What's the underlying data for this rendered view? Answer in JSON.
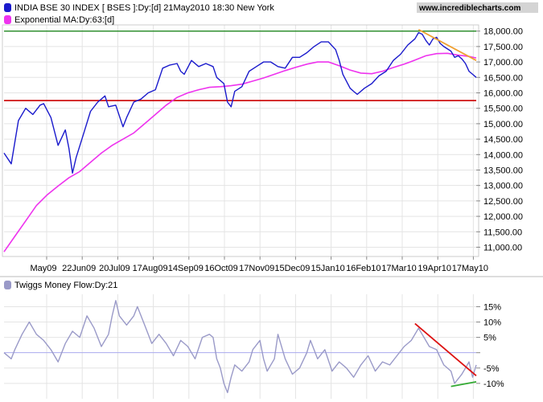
{
  "header": {
    "title": "INDIA BSE 30 INDEX [ BSES ]:Dy:[d]  21May2010 18:30 New York",
    "website": "www.incrediblecharts.com",
    "legend_ma": "Exponential MA:Dy:63:[d]",
    "legend_tmf": "Twiggs Money Flow:Dy:21"
  },
  "colors": {
    "price": "#1a1acc",
    "ma": "#ee33ee",
    "tmf": "#9a9ac8",
    "support": "#cc0000",
    "resistance": "#228822",
    "trend_orange": "#f0a030",
    "trend_red": "#dd1111",
    "trend_green": "#33aa33",
    "grid": "#e4e4e4",
    "zero_line": "#aaaaee"
  },
  "chart_data": [
    {
      "type": "line",
      "title": "INDIA BSE 30 INDEX [ BSES ]:Dy:[d]  21May2010 18:30 New York",
      "x_tick_labels": [
        "May09",
        "22Jun09",
        "20Jul09",
        "17Aug09",
        "14Sep09",
        "16Oct09",
        "17Nov09",
        "15Dec09",
        "15Jan10",
        "16Feb10",
        "17Mar10",
        "19Apr10",
        "17May10"
      ],
      "y_ticks": [
        11000,
        11500,
        12000,
        12500,
        13000,
        13500,
        14000,
        14500,
        15000,
        15500,
        16000,
        16500,
        17000,
        17500,
        18000
      ],
      "y_tick_labels": [
        "11,000.00",
        "11,500.00",
        "12,000.00",
        "12,500.00",
        "13,000.00",
        "13,500.00",
        "14,000.00",
        "14,500.00",
        "15,000.00",
        "15,500.00",
        "16,000.00",
        "16,500.00",
        "17,000.00",
        "17,500.00",
        "18,000.00"
      ],
      "ylim": [
        10700,
        18200
      ],
      "series": [
        {
          "name": "INDIA BSE 30 INDEX [ BSES ]:Dy:[d]",
          "points": [
            [
              0,
              14050
            ],
            [
              2,
              13700
            ],
            [
              4,
              15100
            ],
            [
              6,
              15500
            ],
            [
              8,
              15300
            ],
            [
              10,
              15600
            ],
            [
              11,
              15650
            ],
            [
              13,
              15200
            ],
            [
              15,
              14300
            ],
            [
              17,
              14800
            ],
            [
              18,
              14200
            ],
            [
              19,
              13400
            ],
            [
              20,
              13900
            ],
            [
              22,
              14650
            ],
            [
              24,
              15400
            ],
            [
              26,
              15700
            ],
            [
              28,
              15900
            ],
            [
              29,
              15550
            ],
            [
              31,
              15600
            ],
            [
              33,
              14900
            ],
            [
              34,
              15200
            ],
            [
              36,
              15700
            ],
            [
              38,
              15800
            ],
            [
              40,
              16000
            ],
            [
              42,
              16100
            ],
            [
              44,
              16800
            ],
            [
              46,
              16900
            ],
            [
              48,
              16950
            ],
            [
              49,
              16700
            ],
            [
              50,
              16600
            ],
            [
              52,
              17050
            ],
            [
              54,
              16850
            ],
            [
              56,
              16950
            ],
            [
              58,
              16850
            ],
            [
              59,
              16500
            ],
            [
              61,
              16300
            ],
            [
              62,
              15700
            ],
            [
              63,
              15550
            ],
            [
              64,
              16050
            ],
            [
              66,
              16200
            ],
            [
              68,
              16700
            ],
            [
              70,
              16850
            ],
            [
              72,
              17000
            ],
            [
              74,
              17000
            ],
            [
              76,
              16850
            ],
            [
              78,
              16800
            ],
            [
              80,
              17150
            ],
            [
              82,
              17150
            ],
            [
              84,
              17300
            ],
            [
              86,
              17500
            ],
            [
              88,
              17650
            ],
            [
              90,
              17650
            ],
            [
              92,
              17400
            ],
            [
              93,
              17050
            ],
            [
              94,
              16600
            ],
            [
              96,
              16150
            ],
            [
              97,
              16050
            ],
            [
              98,
              15950
            ],
            [
              100,
              16150
            ],
            [
              102,
              16300
            ],
            [
              104,
              16550
            ],
            [
              106,
              16700
            ],
            [
              108,
              17050
            ],
            [
              110,
              17250
            ],
            [
              112,
              17550
            ],
            [
              114,
              17750
            ],
            [
              115,
              17950
            ],
            [
              116,
              17900
            ],
            [
              117,
              17700
            ],
            [
              118,
              17550
            ],
            [
              119,
              17750
            ],
            [
              120,
              17800
            ],
            [
              121,
              17600
            ],
            [
              122,
              17500
            ],
            [
              124,
              17350
            ],
            [
              125,
              17150
            ],
            [
              126,
              17200
            ],
            [
              127,
              17100
            ],
            [
              128,
              16950
            ],
            [
              129,
              16700
            ],
            [
              130,
              16600
            ],
            [
              131,
              16500
            ]
          ]
        },
        {
          "name": "Exponential MA:Dy:63:[d]",
          "points": [
            [
              0,
              10850
            ],
            [
              3,
              11350
            ],
            [
              6,
              11850
            ],
            [
              9,
              12350
            ],
            [
              12,
              12700
            ],
            [
              15,
              12980
            ],
            [
              18,
              13250
            ],
            [
              21,
              13450
            ],
            [
              24,
              13750
            ],
            [
              27,
              14050
            ],
            [
              30,
              14300
            ],
            [
              33,
              14500
            ],
            [
              36,
              14700
            ],
            [
              39,
              15000
            ],
            [
              42,
              15300
            ],
            [
              45,
              15600
            ],
            [
              48,
              15850
            ],
            [
              51,
              16000
            ],
            [
              54,
              16100
            ],
            [
              57,
              16180
            ],
            [
              60,
              16200
            ],
            [
              63,
              16230
            ],
            [
              66,
              16280
            ],
            [
              69,
              16380
            ],
            [
              72,
              16480
            ],
            [
              75,
              16600
            ],
            [
              78,
              16720
            ],
            [
              81,
              16830
            ],
            [
              84,
              16930
            ],
            [
              87,
              17000
            ],
            [
              90,
              17000
            ],
            [
              93,
              16880
            ],
            [
              96,
              16740
            ],
            [
              99,
              16640
            ],
            [
              102,
              16620
            ],
            [
              105,
              16700
            ],
            [
              108,
              16820
            ],
            [
              111,
              16930
            ],
            [
              114,
              17060
            ],
            [
              117,
              17200
            ],
            [
              120,
              17270
            ],
            [
              123,
              17280
            ],
            [
              126,
              17220
            ],
            [
              129,
              17180
            ],
            [
              131,
              17130
            ]
          ]
        }
      ],
      "annotations": [
        {
          "kind": "horizontal_line",
          "name": "resistance",
          "y": 18000
        },
        {
          "kind": "horizontal_line",
          "name": "support",
          "y": 15750
        },
        {
          "kind": "trendline",
          "name": "falling_highs",
          "from": [
            115,
            18050
          ],
          "to": [
            131,
            17050
          ]
        }
      ],
      "grid": true
    },
    {
      "type": "line",
      "title": "Twiggs Money Flow:Dy:21",
      "y_ticks": [
        15,
        10,
        5,
        0,
        -5,
        -10
      ],
      "y_tick_labels": [
        "15%",
        "10%",
        "5%",
        "",
        "-5%",
        "-10%"
      ],
      "ylim": [
        -14.5,
        18
      ],
      "series": [
        {
          "name": "Twiggs Money Flow:Dy:21",
          "points": [
            [
              0,
              0
            ],
            [
              2,
              -2
            ],
            [
              3,
              1
            ],
            [
              5,
              6
            ],
            [
              7,
              10
            ],
            [
              9,
              6
            ],
            [
              11,
              4
            ],
            [
              13,
              1
            ],
            [
              15,
              -3
            ],
            [
              17,
              3
            ],
            [
              19,
              7
            ],
            [
              21,
              5
            ],
            [
              23,
              12
            ],
            [
              25,
              8
            ],
            [
              27,
              2
            ],
            [
              29,
              6
            ],
            [
              30,
              12
            ],
            [
              31,
              17
            ],
            [
              32,
              12
            ],
            [
              34,
              9
            ],
            [
              36,
              12
            ],
            [
              37,
              15
            ],
            [
              39,
              9
            ],
            [
              41,
              3
            ],
            [
              43,
              6
            ],
            [
              45,
              3
            ],
            [
              47,
              -1
            ],
            [
              49,
              4
            ],
            [
              51,
              2
            ],
            [
              53,
              -2
            ],
            [
              55,
              5
            ],
            [
              57,
              6
            ],
            [
              58,
              5
            ],
            [
              59,
              -2
            ],
            [
              60,
              -5
            ],
            [
              61,
              -10
            ],
            [
              62,
              -13
            ],
            [
              63,
              -8
            ],
            [
              64,
              -4
            ],
            [
              66,
              -6
            ],
            [
              68,
              -3
            ],
            [
              69,
              1
            ],
            [
              71,
              4
            ],
            [
              72,
              -2
            ],
            [
              73,
              -6
            ],
            [
              75,
              -2
            ],
            [
              76,
              6
            ],
            [
              78,
              -2
            ],
            [
              80,
              -7
            ],
            [
              82,
              -5
            ],
            [
              84,
              0
            ],
            [
              85,
              4
            ],
            [
              87,
              -2
            ],
            [
              89,
              1
            ],
            [
              91,
              -6
            ],
            [
              93,
              -3
            ],
            [
              95,
              -5
            ],
            [
              97,
              -8
            ],
            [
              99,
              -4
            ],
            [
              101,
              -1
            ],
            [
              103,
              -6
            ],
            [
              105,
              -3
            ],
            [
              107,
              -4
            ],
            [
              109,
              -1
            ],
            [
              111,
              2
            ],
            [
              113,
              4
            ],
            [
              115,
              8
            ],
            [
              116,
              6
            ],
            [
              118,
              2
            ],
            [
              120,
              1
            ],
            [
              122,
              -4
            ],
            [
              124,
              -6
            ],
            [
              125,
              -10
            ],
            [
              127,
              -7
            ],
            [
              128,
              -5
            ],
            [
              129,
              -3
            ],
            [
              130,
              -8
            ],
            [
              131,
              -4
            ]
          ]
        }
      ],
      "annotations": [
        {
          "kind": "trendline",
          "name": "falling_peaks",
          "from": [
            114,
            9.5
          ],
          "to": [
            131,
            -7.5
          ]
        },
        {
          "kind": "trendline",
          "name": "rising_troughs",
          "from": [
            124,
            -11
          ],
          "to": [
            131,
            -9.5
          ]
        }
      ],
      "grid": true
    }
  ]
}
